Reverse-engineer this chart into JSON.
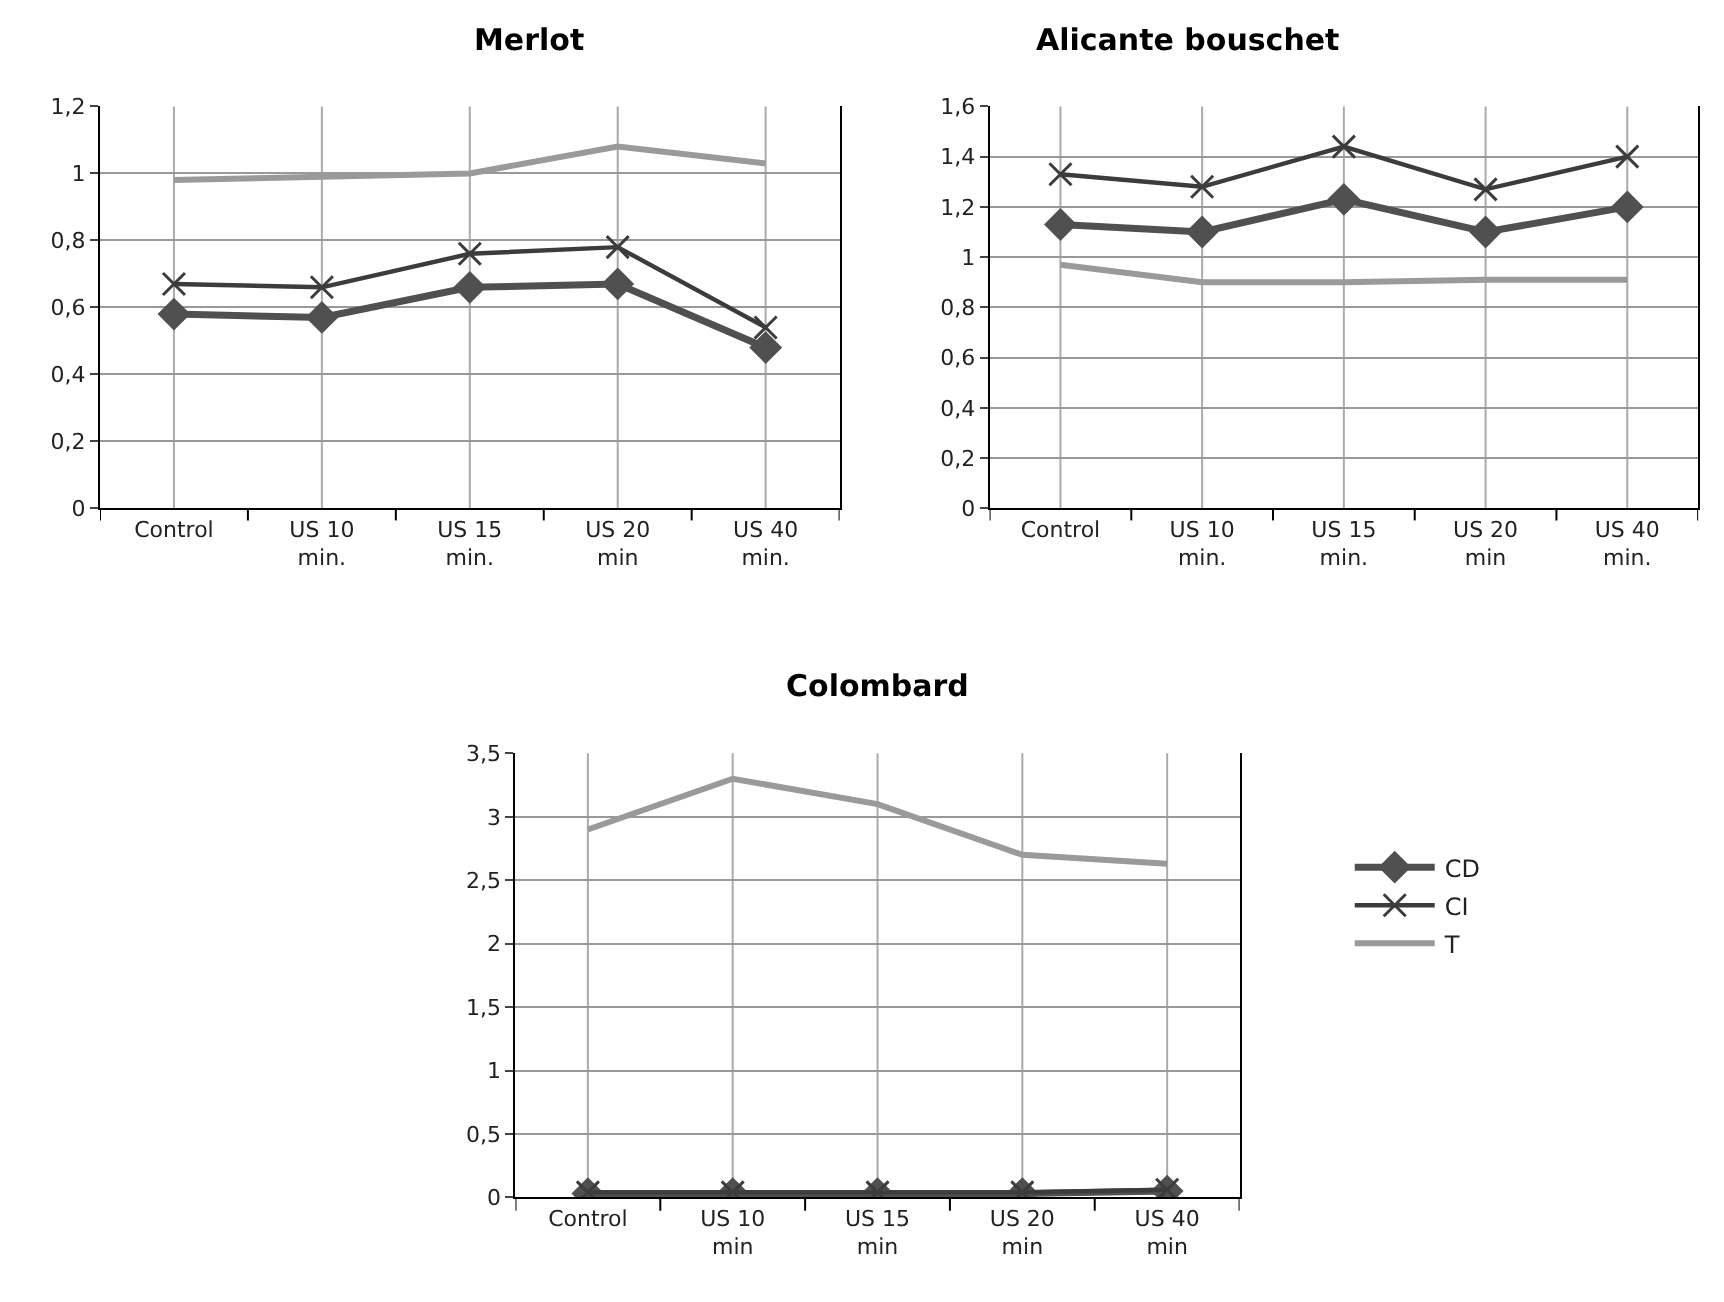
{
  "chart_data": [
    {
      "type": "line",
      "title": "Merlot",
      "categories": [
        "Control",
        "US 10 min.",
        "US 15 min.",
        "US 20 min",
        "US 40 min."
      ],
      "ylim": [
        0,
        1.2
      ],
      "yticks": [
        0,
        {
          "value": 0.2,
          "label": "0,2"
        },
        {
          "value": 0.4,
          "label": "0,4"
        },
        {
          "value": 0.6,
          "label": "0,6"
        },
        {
          "value": 0.8,
          "label": "0,8"
        },
        1,
        {
          "value": 1.2,
          "label": "1,2"
        }
      ],
      "grid": true,
      "series": [
        {
          "color": "#505050",
          "marker": "diamond",
          "values": [
            0.58,
            0.57,
            0.66,
            0.67,
            0.48
          ]
        },
        {
          "color": "#3c3c3c",
          "marker": "cross",
          "values": [
            0.67,
            0.66,
            0.76,
            0.78,
            0.54
          ]
        },
        {
          "color": "#9a9a9a",
          "marker": "none",
          "values": [
            0.98,
            0.99,
            1.0,
            1.08,
            1.03
          ]
        }
      ]
    },
    {
      "type": "line",
      "title": "Alicante bouschet",
      "categories": [
        "Control",
        "US 10 min.",
        "US 15 min.",
        "US 20 min",
        "US 40 min."
      ],
      "ylim": [
        0,
        1.6
      ],
      "yticks": [
        0,
        {
          "value": 0.2,
          "label": "0,2"
        },
        {
          "value": 0.4,
          "label": "0,4"
        },
        {
          "value": 0.6,
          "label": "0,6"
        },
        {
          "value": 0.8,
          "label": "0,8"
        },
        1,
        {
          "value": 1.2,
          "label": "1,2"
        },
        {
          "value": 1.4,
          "label": "1,4"
        },
        {
          "value": 1.6,
          "label": "1,6"
        }
      ],
      "grid": true,
      "series": [
        {
          "color": "#505050",
          "marker": "diamond",
          "values": [
            1.13,
            1.1,
            1.23,
            1.1,
            1.2
          ]
        },
        {
          "color": "#3c3c3c",
          "marker": "cross",
          "values": [
            1.33,
            1.28,
            1.44,
            1.27,
            1.4
          ]
        },
        {
          "color": "#9a9a9a",
          "marker": "none",
          "values": [
            0.97,
            0.9,
            0.9,
            0.91,
            0.91
          ]
        }
      ]
    },
    {
      "type": "line",
      "title": "Colombard",
      "categories": [
        "Control",
        "US 10 min",
        "US 15 min",
        "US 20 min",
        "US 40 min"
      ],
      "ylim": [
        0,
        3.5
      ],
      "yticks": [
        0,
        {
          "value": 0.5,
          "label": "0,5"
        },
        1,
        {
          "value": 1.5,
          "label": "1,5"
        },
        2,
        {
          "value": 2.5,
          "label": "2,5"
        },
        3,
        {
          "value": 3.5,
          "label": "3,5"
        }
      ],
      "grid": true,
      "legend": "right",
      "series": [
        {
          "name": "CD",
          "color": "#505050",
          "marker": "diamond",
          "values": [
            0.03,
            0.03,
            0.03,
            0.03,
            0.05
          ]
        },
        {
          "name": "CI",
          "color": "#3c3c3c",
          "marker": "cross",
          "values": [
            0.04,
            0.04,
            0.04,
            0.04,
            0.06
          ]
        },
        {
          "name": "T",
          "color": "#9a9a9a",
          "marker": "none",
          "values": [
            2.9,
            3.3,
            3.1,
            2.7,
            2.63
          ]
        }
      ]
    }
  ]
}
